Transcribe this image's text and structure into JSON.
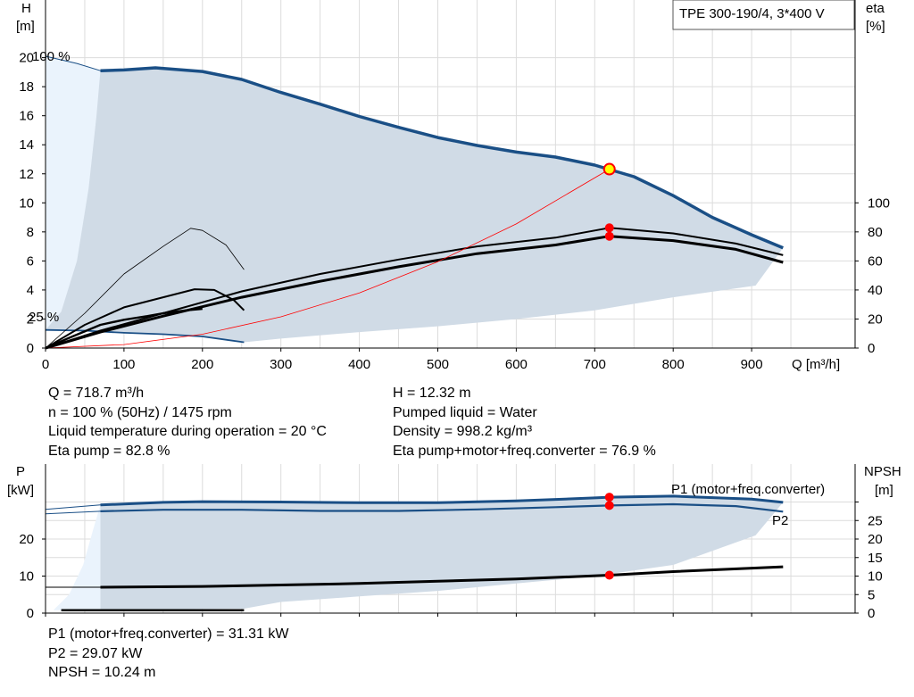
{
  "pump_title": "TPE 300-190/4, 3*400 V",
  "colors": {
    "curve_blue": "#1a4f86",
    "area_fill": "#d0dbe6",
    "area_fill_light": "#eaf3fc",
    "duty_point": "#ff0000",
    "eta_red": "#ff0000"
  },
  "info_upper": {
    "left": [
      "Q = 718.7 m³/h",
      "n = 100 % (50Hz) / 1475 rpm",
      "Liquid temperature during operation = 20 °C",
      "Eta pump = 82.8 %"
    ],
    "right": [
      "H = 12.32 m",
      "Pumped liquid = Water",
      "Density = 998.2 kg/m³",
      "Eta pump+motor+freq.converter = 76.9 %"
    ]
  },
  "info_lower": [
    "P1 (motor+freq.converter) = 31.31 kW",
    "P2 = 29.07 kW",
    "NPSH = 10.24 m"
  ],
  "chart_data": [
    {
      "type": "line",
      "title": "",
      "xlabel": "Q [m³/h]",
      "ylabel": "H [m]",
      "y2label": "eta [%]",
      "ylabel_parts": [
        "H",
        "[m]"
      ],
      "y2label_parts": [
        "eta",
        "[%]"
      ],
      "xlim": [
        0,
        1000
      ],
      "ylim": [
        0,
        20
      ],
      "y2lim": [
        0,
        100
      ],
      "x_ticks": [
        0,
        100,
        200,
        300,
        400,
        500,
        600,
        700,
        800,
        900
      ],
      "y_ticks": [
        0,
        2,
        4,
        6,
        8,
        10,
        12,
        14,
        16,
        18,
        20
      ],
      "y2_ticks": [
        0,
        20,
        40,
        60,
        80,
        100
      ],
      "grid": true,
      "annotations": [
        "100 %",
        "25 %"
      ],
      "duty_point": {
        "q": 718.7,
        "h": 12.32
      },
      "series": [
        {
          "name": "",
          "color": "#1a4f86",
          "points": [
            [
              70,
              19.1
            ],
            [
              100,
              19.15
            ],
            [
              140,
              19.3
            ],
            [
              200,
              19.05
            ],
            [
              250,
              18.5
            ],
            [
              300,
              17.6
            ],
            [
              350,
              16.8
            ],
            [
              400,
              15.95
            ],
            [
              450,
              15.2
            ],
            [
              500,
              14.5
            ],
            [
              550,
              13.95
            ],
            [
              600,
              13.5
            ],
            [
              650,
              13.15
            ],
            [
              700,
              12.6
            ],
            [
              750,
              11.8
            ],
            [
              800,
              10.5
            ],
            [
              850,
              9.0
            ],
            [
              900,
              7.8
            ],
            [
              940,
              6.9
            ]
          ]
        },
        {
          "name": "",
          "color": "#1a4f86",
          "points": [
            [
              0,
              1.25
            ],
            [
              50,
              1.2
            ],
            [
              100,
              1.05
            ],
            [
              150,
              0.95
            ],
            [
              200,
              0.8
            ],
            [
              253,
              0.4
            ]
          ]
        },
        {
          "name": "",
          "color": "#000000",
          "points": [
            [
              0,
              0
            ],
            [
              70,
              1.1
            ],
            [
              150,
              2.2
            ],
            [
              250,
              3.5
            ],
            [
              350,
              4.6
            ],
            [
              450,
              5.6
            ],
            [
              550,
              6.5
            ],
            [
              650,
              7.1
            ],
            [
              718.7,
              7.7
            ],
            [
              800,
              7.4
            ],
            [
              880,
              6.8
            ],
            [
              940,
              5.9
            ]
          ]
        },
        {
          "name": "",
          "color": "#000000",
          "points": [
            [
              0,
              0
            ],
            [
              70,
              1.2
            ],
            [
              150,
              2.4
            ],
            [
              250,
              3.9
            ],
            [
              350,
              5.1
            ],
            [
              450,
              6.1
            ],
            [
              550,
              7.0
            ],
            [
              650,
              7.6
            ],
            [
              718.7,
              8.28
            ],
            [
              800,
              7.9
            ],
            [
              880,
              7.2
            ],
            [
              940,
              6.4
            ]
          ]
        },
        {
          "name": "",
          "color": "#000000",
          "points": [
            [
              0,
              0
            ],
            [
              30,
              0.7
            ],
            [
              70,
              1.6
            ],
            [
              100,
              1.95
            ],
            [
              130,
              2.2
            ],
            [
              150,
              2.4
            ],
            [
              180,
              2.6
            ],
            [
              200,
              2.7
            ]
          ]
        },
        {
          "name": "",
          "color": "#000000",
          "points": [
            [
              0,
              0
            ],
            [
              50,
              1.6
            ],
            [
              100,
              2.8
            ],
            [
              150,
              3.5
            ],
            [
              190,
              4.05
            ],
            [
              215,
              4.0
            ],
            [
              240,
              3.3
            ],
            [
              253,
              2.6
            ]
          ]
        },
        {
          "name": "",
          "color": "#000000",
          "points": [
            [
              0,
              0
            ],
            [
              50,
              2.4
            ],
            [
              100,
              5.1
            ],
            [
              150,
              7.0
            ],
            [
              185,
              8.25
            ],
            [
              200,
              8.1
            ],
            [
              230,
              7.1
            ],
            [
              253,
              5.4
            ]
          ]
        },
        {
          "name": "",
          "color": "#ff0000",
          "points": [
            [
              0,
              0
            ],
            [
              100,
              0.24
            ],
            [
              200,
              0.95
            ],
            [
              300,
              2.15
            ],
            [
              400,
              3.8
            ],
            [
              500,
              5.95
            ],
            [
              600,
              8.55
            ],
            [
              718.7,
              12.32
            ]
          ]
        }
      ],
      "markers": [
        [
          718.7,
          8.28
        ],
        [
          718.7,
          7.7
        ]
      ]
    },
    {
      "type": "line",
      "title": "",
      "xlabel": "",
      "ylabel": "P [kW]",
      "y2label": "NPSH [m]",
      "ylabel_parts": [
        "P",
        "[kW]"
      ],
      "y2label_parts": [
        "NPSH",
        "[m]"
      ],
      "xlim": [
        0,
        1000
      ],
      "ylim": [
        0,
        33
      ],
      "y_ticks": [
        0,
        10,
        20
      ],
      "y2_ticks": [
        0,
        5,
        10,
        15,
        20,
        25
      ],
      "grid": true,
      "series": [
        {
          "name": "P1 (motor+freq.converter)",
          "color": "#1a4f86",
          "points": [
            [
              0,
              28
            ],
            [
              70,
              29.2
            ],
            [
              150,
              29.9
            ],
            [
              200,
              30.1
            ],
            [
              300,
              30.0
            ],
            [
              400,
              29.8
            ],
            [
              500,
              29.8
            ],
            [
              600,
              30.3
            ],
            [
              700,
              31.1
            ],
            [
              718.7,
              31.31
            ],
            [
              800,
              31.6
            ],
            [
              900,
              30.8
            ],
            [
              940,
              29.9
            ]
          ]
        },
        {
          "name": "P2",
          "color": "#1a4f86",
          "points": [
            [
              0,
              26.8
            ],
            [
              70,
              27.5
            ],
            [
              150,
              27.9
            ],
            [
              250,
              27.9
            ],
            [
              350,
              27.6
            ],
            [
              450,
              27.6
            ],
            [
              550,
              28.0
            ],
            [
              650,
              28.6
            ],
            [
              718.7,
              29.07
            ],
            [
              800,
              29.4
            ],
            [
              880,
              28.9
            ],
            [
              940,
              27.4
            ]
          ]
        },
        {
          "name": "",
          "color": "#000000",
          "points": [
            [
              70,
              7
            ],
            [
              200,
              7.2
            ],
            [
              300,
              7.6
            ],
            [
              400,
              8.0
            ],
            [
              500,
              8.6
            ],
            [
              600,
              9.2
            ],
            [
              718.7,
              10.24
            ],
            [
              800,
              11.2
            ],
            [
              940,
              12.5
            ]
          ]
        },
        {
          "name": "",
          "color": "#000000",
          "points": [
            [
              20,
              0.8
            ],
            [
              253,
              0.8
            ]
          ]
        }
      ],
      "markers": [
        [
          718.7,
          31.31
        ],
        [
          718.7,
          29.07
        ],
        [
          718.7,
          10.24
        ]
      ]
    }
  ]
}
